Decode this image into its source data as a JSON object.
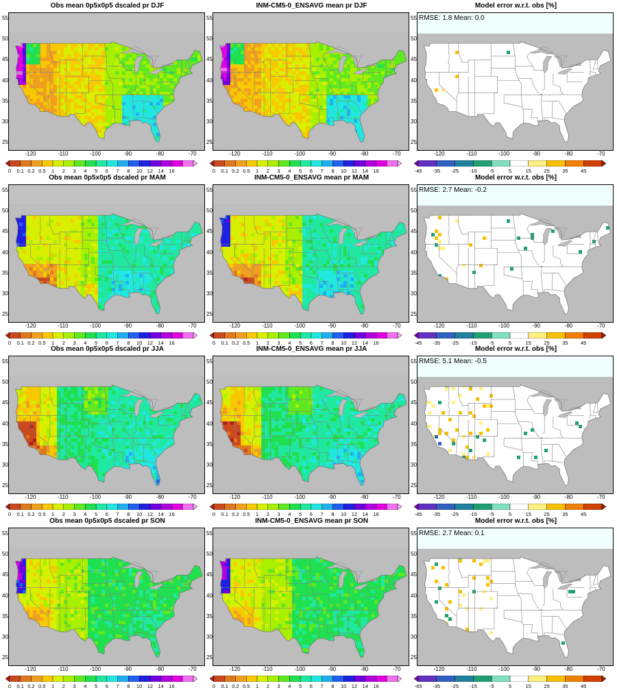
{
  "panels": [
    {
      "title": "Obs mean 0p5x0p5 dscaled pr DJF",
      "kind": "obs",
      "season": "DJF",
      "stats": ""
    },
    {
      "title": "INM-CM5-0_ENSAVG mean pr DJF",
      "kind": "model",
      "season": "DJF",
      "stats": ""
    },
    {
      "title": "Model error w.r.t. obs [%]",
      "kind": "error",
      "season": "DJF",
      "stats": "RMSE: 1.8  Mean: 0.0"
    },
    {
      "title": "Obs mean 0p5x0p5 dscaled pr MAM",
      "kind": "obs",
      "season": "MAM",
      "stats": ""
    },
    {
      "title": "INM-CM5-0_ENSAVG mean pr MAM",
      "kind": "model",
      "season": "MAM",
      "stats": ""
    },
    {
      "title": "Model error w.r.t. obs [%]",
      "kind": "error",
      "season": "MAM",
      "stats": "RMSE: 2.7  Mean: -0.2"
    },
    {
      "title": "Obs mean 0p5x0p5 dscaled pr JJA",
      "kind": "obs",
      "season": "JJA",
      "stats": ""
    },
    {
      "title": "INM-CM5-0_ENSAVG mean pr JJA",
      "kind": "model",
      "season": "JJA",
      "stats": ""
    },
    {
      "title": "Model error w.r.t. obs [%]",
      "kind": "error",
      "season": "JJA",
      "stats": "RMSE: 5.1  Mean: -0.5"
    },
    {
      "title": "Obs mean 0p5x0p5 dscaled pr SON",
      "kind": "obs",
      "season": "SON",
      "stats": ""
    },
    {
      "title": "INM-CM5-0_ENSAVG mean pr SON",
      "kind": "model",
      "season": "SON",
      "stats": ""
    },
    {
      "title": "Model error w.r.t. obs [%]",
      "kind": "error",
      "season": "SON",
      "stats": "RMSE: 2.7  Mean: 0.1"
    }
  ],
  "axes": {
    "lon_ticks": [
      "-120",
      "-110",
      "-100",
      "-90",
      "-80",
      "-70"
    ],
    "lat_ticks": [
      "55",
      "50",
      "45",
      "40",
      "35",
      "30",
      "25"
    ]
  },
  "colorbars": {
    "precip": {
      "labels": [
        "0",
        "0.1",
        "0.2",
        "0.5",
        "1",
        "2",
        "3",
        "4",
        "5",
        "6",
        "7",
        "8",
        "10",
        "12",
        "14",
        "16"
      ],
      "colors": [
        "#b01e1e",
        "#c84a1e",
        "#e0781e",
        "#f0a020",
        "#f8c800",
        "#d8f000",
        "#a8f000",
        "#60e820",
        "#20e050",
        "#20e8a0",
        "#20e8e0",
        "#20b0f0",
        "#2060f0",
        "#2020e0",
        "#7000e0",
        "#b000e0",
        "#e000e0",
        "#f070f0",
        "#f8b0f8"
      ]
    },
    "error": {
      "labels": [
        "-45",
        "-35",
        "-25",
        "-15",
        "-5",
        "5",
        "15",
        "25",
        "35",
        "45"
      ],
      "colors": [
        "#8000b0",
        "#6030c0",
        "#3060c0",
        "#2080a0",
        "#20a070",
        "#80e0c0",
        "#ffffff",
        "#fff080",
        "#f8c000",
        "#f08000",
        "#d04000",
        "#a02000"
      ]
    }
  }
}
